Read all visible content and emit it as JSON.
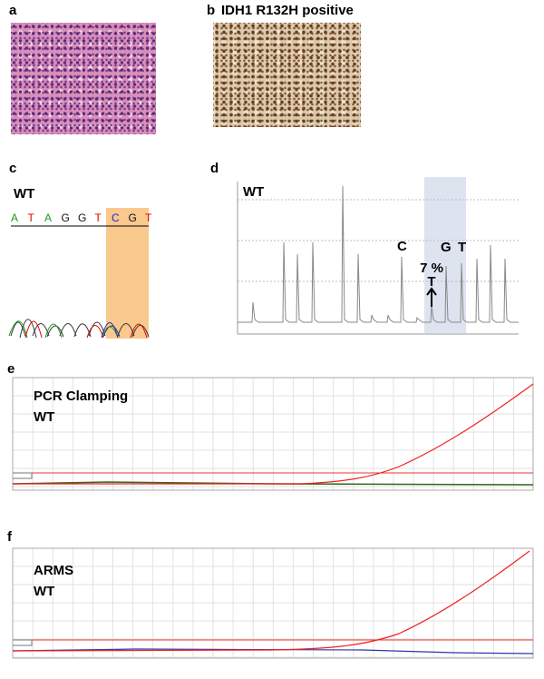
{
  "panels": {
    "a": {
      "label": "a"
    },
    "b": {
      "label": "b",
      "title": "IDH1 R132H positive"
    },
    "c": {
      "label": "c",
      "sample": "WT",
      "sequence": [
        "A",
        "T",
        "A",
        "G",
        "G",
        "T",
        "C",
        "G",
        "T"
      ]
    },
    "d": {
      "label": "d",
      "sample": "WT",
      "peak_labels": [
        "C",
        "G",
        "T"
      ],
      "annotation": "7 %",
      "annotation_base": "T"
    },
    "e": {
      "label": "e",
      "method": "PCR Clamping",
      "sample": "WT"
    },
    "f": {
      "label": "f",
      "method": "ARMS",
      "sample": "WT"
    }
  }
}
